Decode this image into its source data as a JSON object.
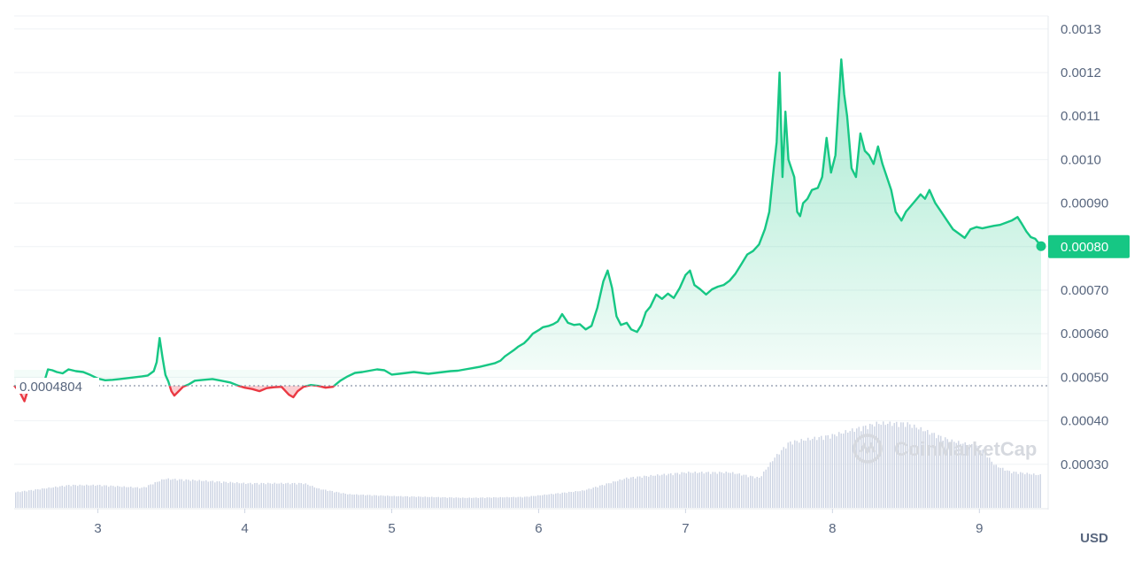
{
  "chart_data": {
    "type": "line",
    "currency": "USD",
    "colors": {
      "up": "#16c784",
      "down": "#ea3943",
      "grid": "#eff2f5",
      "axis_text": "#58667e",
      "volume": "#cfd6e4"
    },
    "y_ticks": [
      "0.00030",
      "0.00040",
      "0.00050",
      "0.00060",
      "0.00070",
      "0.00080",
      "0.00090",
      "0.0010",
      "0.0011",
      "0.0012",
      "0.0013"
    ],
    "ylim": [
      0.0002,
      0.00133
    ],
    "x_ticks": [
      "3",
      "4",
      "5",
      "6",
      "7",
      "8",
      "9"
    ],
    "xlim": [
      2.43,
      9.42
    ],
    "baseline": {
      "value": 0.0004804,
      "label": "0.0004804"
    },
    "current_price": {
      "value": 0.0008,
      "label": "0.00080"
    },
    "watermark": "CoinMarketCap",
    "price_points": [
      [
        2.43,
        0.000481
      ],
      [
        2.47,
        0.000465
      ],
      [
        2.5,
        0.000445
      ],
      [
        2.53,
        0.000478
      ],
      [
        2.58,
        0.000482
      ],
      [
        2.63,
        0.000484
      ],
      [
        2.66,
        0.000518
      ],
      [
        2.69,
        0.000516
      ],
      [
        2.72,
        0.000512
      ],
      [
        2.76,
        0.000509
      ],
      [
        2.8,
        0.000518
      ],
      [
        2.85,
        0.000514
      ],
      [
        2.9,
        0.000512
      ],
      [
        2.95,
        0.000505
      ],
      [
        3.0,
        0.000497
      ],
      [
        3.05,
        0.000493
      ],
      [
        3.1,
        0.000494
      ],
      [
        3.15,
        0.000496
      ],
      [
        3.2,
        0.000498
      ],
      [
        3.25,
        0.0005
      ],
      [
        3.3,
        0.000502
      ],
      [
        3.34,
        0.000504
      ],
      [
        3.38,
        0.000514
      ],
      [
        3.4,
        0.000535
      ],
      [
        3.42,
        0.00059
      ],
      [
        3.44,
        0.000545
      ],
      [
        3.46,
        0.000505
      ],
      [
        3.48,
        0.00049
      ],
      [
        3.5,
        0.000468
      ],
      [
        3.52,
        0.000458
      ],
      [
        3.55,
        0.000468
      ],
      [
        3.58,
        0.000478
      ],
      [
        3.62,
        0.000484
      ],
      [
        3.66,
        0.000492
      ],
      [
        3.72,
        0.000494
      ],
      [
        3.78,
        0.000496
      ],
      [
        3.84,
        0.000492
      ],
      [
        3.9,
        0.000488
      ],
      [
        3.96,
        0.00048
      ],
      [
        4.0,
        0.000476
      ],
      [
        4.05,
        0.000473
      ],
      [
        4.1,
        0.000468
      ],
      [
        4.15,
        0.000475
      ],
      [
        4.2,
        0.000477
      ],
      [
        4.25,
        0.000478
      ],
      [
        4.3,
        0.00046
      ],
      [
        4.33,
        0.000454
      ],
      [
        4.36,
        0.000468
      ],
      [
        4.4,
        0.000478
      ],
      [
        4.45,
        0.000482
      ],
      [
        4.5,
        0.00048
      ],
      [
        4.55,
        0.000476
      ],
      [
        4.6,
        0.000478
      ],
      [
        4.65,
        0.000492
      ],
      [
        4.7,
        0.000502
      ],
      [
        4.75,
        0.00051
      ],
      [
        4.8,
        0.000512
      ],
      [
        4.85,
        0.000515
      ],
      [
        4.9,
        0.000518
      ],
      [
        4.95,
        0.000516
      ],
      [
        5.0,
        0.000506
      ],
      [
        5.05,
        0.000508
      ],
      [
        5.1,
        0.00051
      ],
      [
        5.15,
        0.000512
      ],
      [
        5.2,
        0.00051
      ],
      [
        5.25,
        0.000508
      ],
      [
        5.3,
        0.00051
      ],
      [
        5.35,
        0.000512
      ],
      [
        5.4,
        0.000514
      ],
      [
        5.45,
        0.000515
      ],
      [
        5.5,
        0.000518
      ],
      [
        5.55,
        0.000521
      ],
      [
        5.6,
        0.000524
      ],
      [
        5.65,
        0.000528
      ],
      [
        5.7,
        0.000532
      ],
      [
        5.74,
        0.000538
      ],
      [
        5.77,
        0.000548
      ],
      [
        5.8,
        0.000555
      ],
      [
        5.83,
        0.000562
      ],
      [
        5.86,
        0.00057
      ],
      [
        5.9,
        0.000578
      ],
      [
        5.93,
        0.000588
      ],
      [
        5.96,
        0.0006
      ],
      [
        6.0,
        0.000608
      ],
      [
        6.03,
        0.000615
      ],
      [
        6.07,
        0.000618
      ],
      [
        6.1,
        0.000622
      ],
      [
        6.13,
        0.000628
      ],
      [
        6.16,
        0.000645
      ],
      [
        6.2,
        0.000625
      ],
      [
        6.24,
        0.00062
      ],
      [
        6.28,
        0.000622
      ],
      [
        6.32,
        0.00061
      ],
      [
        6.36,
        0.000618
      ],
      [
        6.4,
        0.00066
      ],
      [
        6.44,
        0.00072
      ],
      [
        6.47,
        0.000745
      ],
      [
        6.5,
        0.000705
      ],
      [
        6.53,
        0.00064
      ],
      [
        6.56,
        0.00062
      ],
      [
        6.6,
        0.000625
      ],
      [
        6.63,
        0.00061
      ],
      [
        6.67,
        0.000604
      ],
      [
        6.7,
        0.00062
      ],
      [
        6.73,
        0.00065
      ],
      [
        6.76,
        0.000662
      ],
      [
        6.8,
        0.00069
      ],
      [
        6.84,
        0.00068
      ],
      [
        6.88,
        0.000692
      ],
      [
        6.92,
        0.000682
      ],
      [
        6.96,
        0.000705
      ],
      [
        7.0,
        0.000735
      ],
      [
        7.03,
        0.000745
      ],
      [
        7.06,
        0.000712
      ],
      [
        7.1,
        0.000702
      ],
      [
        7.14,
        0.00069
      ],
      [
        7.18,
        0.000702
      ],
      [
        7.22,
        0.000708
      ],
      [
        7.26,
        0.000712
      ],
      [
        7.3,
        0.000722
      ],
      [
        7.34,
        0.000738
      ],
      [
        7.38,
        0.00076
      ],
      [
        7.42,
        0.000782
      ],
      [
        7.46,
        0.00079
      ],
      [
        7.5,
        0.000805
      ],
      [
        7.54,
        0.00084
      ],
      [
        7.57,
        0.00088
      ],
      [
        7.6,
        0.00098
      ],
      [
        7.62,
        0.00104
      ],
      [
        7.64,
        0.0012
      ],
      [
        7.66,
        0.00096
      ],
      [
        7.68,
        0.00111
      ],
      [
        7.7,
        0.001
      ],
      [
        7.72,
        0.00098
      ],
      [
        7.74,
        0.00096
      ],
      [
        7.76,
        0.00088
      ],
      [
        7.78,
        0.00087
      ],
      [
        7.8,
        0.0009
      ],
      [
        7.83,
        0.00091
      ],
      [
        7.86,
        0.00093
      ],
      [
        7.9,
        0.000935
      ],
      [
        7.93,
        0.00096
      ],
      [
        7.96,
        0.00105
      ],
      [
        7.99,
        0.00097
      ],
      [
        8.02,
        0.00101
      ],
      [
        8.06,
        0.00123
      ],
      [
        8.08,
        0.00115
      ],
      [
        8.1,
        0.0011
      ],
      [
        8.13,
        0.00098
      ],
      [
        8.16,
        0.00096
      ],
      [
        8.19,
        0.00106
      ],
      [
        8.22,
        0.00102
      ],
      [
        8.25,
        0.00101
      ],
      [
        8.28,
        0.00099
      ],
      [
        8.31,
        0.00103
      ],
      [
        8.34,
        0.00099
      ],
      [
        8.37,
        0.00096
      ],
      [
        8.4,
        0.00093
      ],
      [
        8.43,
        0.00088
      ],
      [
        8.47,
        0.00086
      ],
      [
        8.5,
        0.00088
      ],
      [
        8.55,
        0.0009
      ],
      [
        8.6,
        0.00092
      ],
      [
        8.63,
        0.00091
      ],
      [
        8.66,
        0.00093
      ],
      [
        8.7,
        0.0009
      ],
      [
        8.74,
        0.00088
      ],
      [
        8.78,
        0.00086
      ],
      [
        8.82,
        0.00084
      ],
      [
        8.86,
        0.00083
      ],
      [
        8.9,
        0.00082
      ],
      [
        8.94,
        0.00084
      ],
      [
        8.98,
        0.000845
      ],
      [
        9.02,
        0.000842
      ],
      [
        9.06,
        0.000845
      ],
      [
        9.1,
        0.000848
      ],
      [
        9.14,
        0.00085
      ],
      [
        9.18,
        0.000855
      ],
      [
        9.22,
        0.00086
      ],
      [
        9.26,
        0.000868
      ],
      [
        9.29,
        0.000852
      ],
      [
        9.32,
        0.000835
      ],
      [
        9.35,
        0.000822
      ],
      [
        9.38,
        0.000818
      ],
      [
        9.42,
        0.000801
      ]
    ],
    "volume_points": [
      [
        2.43,
        0.17
      ],
      [
        2.8,
        0.25
      ],
      [
        3.0,
        0.25
      ],
      [
        3.3,
        0.22
      ],
      [
        3.45,
        0.32
      ],
      [
        3.7,
        0.3
      ],
      [
        4.0,
        0.27
      ],
      [
        4.4,
        0.27
      ],
      [
        4.5,
        0.21
      ],
      [
        4.7,
        0.15
      ],
      [
        5.0,
        0.13
      ],
      [
        5.5,
        0.11
      ],
      [
        5.9,
        0.12
      ],
      [
        6.3,
        0.19
      ],
      [
        6.6,
        0.33
      ],
      [
        7.0,
        0.39
      ],
      [
        7.3,
        0.39
      ],
      [
        7.5,
        0.33
      ],
      [
        7.6,
        0.55
      ],
      [
        7.7,
        0.72
      ],
      [
        8.0,
        0.8
      ],
      [
        8.3,
        0.93
      ],
      [
        8.5,
        0.93
      ],
      [
        8.8,
        0.74
      ],
      [
        9.0,
        0.67
      ],
      [
        9.1,
        0.47
      ],
      [
        9.2,
        0.4
      ],
      [
        9.42,
        0.36
      ]
    ]
  }
}
